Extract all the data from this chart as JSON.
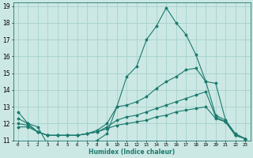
{
  "xlabel": "Humidex (Indice chaleur)",
  "background_color": "#cce8e4",
  "grid_color": "#aad4cf",
  "line_color": "#1a7a6e",
  "xlim": [
    -0.5,
    23.5
  ],
  "ylim": [
    11,
    19.2
  ],
  "yticks": [
    11,
    12,
    13,
    14,
    15,
    16,
    17,
    18,
    19
  ],
  "xticks": [
    0,
    1,
    2,
    3,
    4,
    5,
    6,
    7,
    8,
    9,
    10,
    11,
    12,
    13,
    14,
    15,
    16,
    17,
    18,
    19,
    20,
    21,
    22,
    23
  ],
  "lines": [
    {
      "x": [
        0,
        1,
        2,
        3,
        4,
        5,
        6,
        7,
        8,
        9,
        10,
        11,
        12,
        13,
        14,
        15,
        16,
        17,
        18,
        19,
        20,
        21,
        22,
        23
      ],
      "y": [
        12.7,
        12.0,
        11.8,
        10.75,
        10.75,
        10.75,
        10.75,
        10.8,
        11.0,
        11.4,
        13.0,
        14.8,
        15.4,
        17.0,
        17.8,
        18.9,
        18.0,
        17.3,
        16.1,
        14.5,
        14.4,
        12.2,
        11.3,
        11.1
      ]
    },
    {
      "x": [
        0,
        1,
        2,
        3,
        4,
        5,
        6,
        7,
        8,
        9,
        10,
        11,
        12,
        13,
        14,
        15,
        16,
        17,
        18,
        19,
        20,
        21,
        22,
        23
      ],
      "y": [
        12.3,
        12.0,
        11.5,
        11.3,
        11.3,
        11.3,
        11.3,
        11.4,
        11.6,
        12.0,
        13.0,
        13.1,
        13.3,
        13.6,
        14.1,
        14.5,
        14.8,
        15.2,
        15.3,
        14.5,
        12.5,
        12.2,
        11.4,
        11.1
      ]
    },
    {
      "x": [
        0,
        1,
        2,
        3,
        4,
        5,
        6,
        7,
        8,
        9,
        10,
        11,
        12,
        13,
        14,
        15,
        16,
        17,
        18,
        19,
        20,
        21,
        22,
        23
      ],
      "y": [
        12.0,
        11.9,
        11.5,
        11.3,
        11.3,
        11.3,
        11.3,
        11.4,
        11.5,
        11.8,
        12.2,
        12.4,
        12.5,
        12.7,
        12.9,
        13.1,
        13.3,
        13.5,
        13.7,
        13.9,
        12.4,
        12.1,
        11.3,
        11.1
      ]
    },
    {
      "x": [
        0,
        1,
        2,
        3,
        4,
        5,
        6,
        7,
        8,
        9,
        10,
        11,
        12,
        13,
        14,
        15,
        16,
        17,
        18,
        19,
        20,
        21,
        22,
        23
      ],
      "y": [
        11.8,
        11.8,
        11.5,
        11.3,
        11.3,
        11.3,
        11.3,
        11.4,
        11.5,
        11.7,
        11.9,
        12.0,
        12.1,
        12.2,
        12.4,
        12.5,
        12.7,
        12.8,
        12.9,
        13.0,
        12.3,
        12.1,
        11.3,
        11.1
      ]
    }
  ]
}
